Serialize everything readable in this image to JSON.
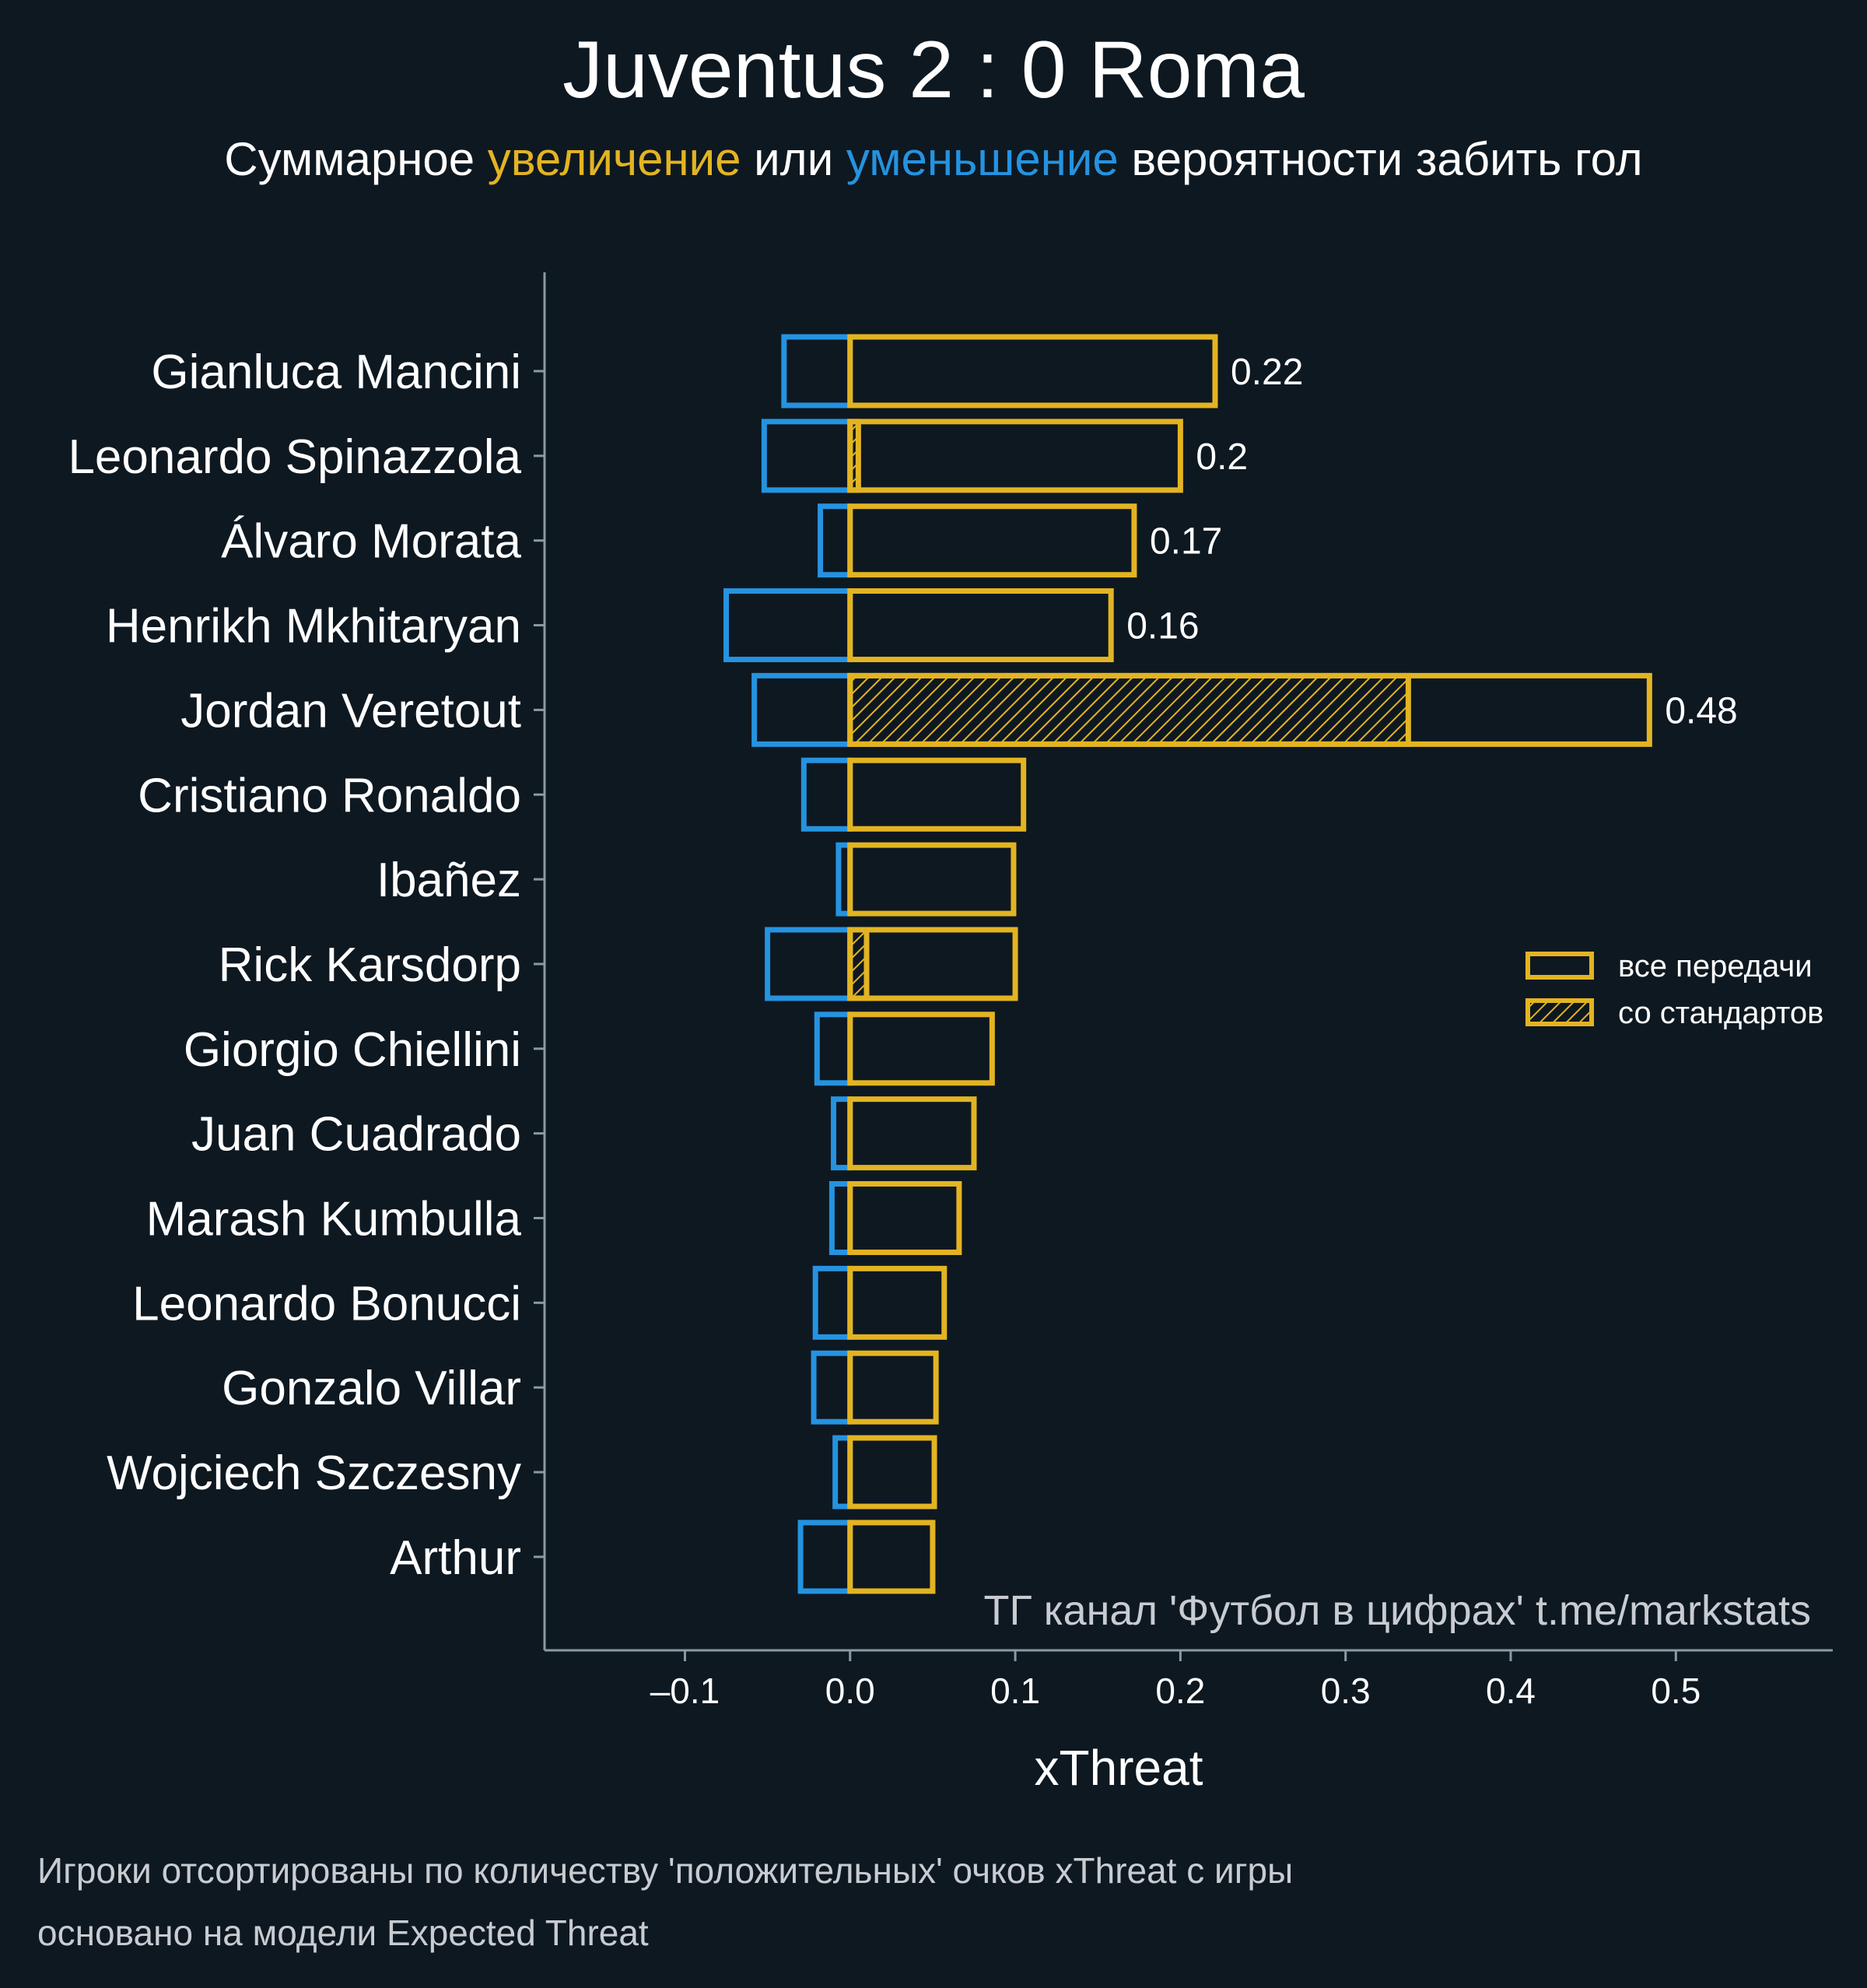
{
  "title": "Juventus 2 : 0 Roma",
  "subtitle": {
    "part1": "Суммарное ",
    "increase": "увеличение",
    "part2": " или ",
    "decrease": "уменьшение",
    "part3": " вероятности забить гол"
  },
  "colors": {
    "background": "#0e1821",
    "positive": "#e3b422",
    "negative": "#2593e0",
    "text": "#ffffff",
    "muted": "#c8ccd0",
    "axis": "#8a9aa2"
  },
  "legend": {
    "position": "right",
    "all_passes": "все передачи",
    "set_pieces": "со стандартов"
  },
  "watermark": "ТГ канал 'Футбол в цифрах'  t.me/markstats",
  "footnote": {
    "line1": "Игроки отсортированы по количеству 'положительных' очков xThreat с игры",
    "line2": "основано на модели Expected Threat"
  },
  "chart_data": {
    "type": "bar",
    "orientation": "horizontal",
    "xlabel": "xThreat",
    "xlim": [
      -0.185,
      0.595
    ],
    "xticks": [
      -0.1,
      0.0,
      0.1,
      0.2,
      0.3,
      0.4,
      0.5
    ],
    "xtick_labels": [
      "–0.1",
      "0.0",
      "0.1",
      "0.2",
      "0.3",
      "0.4",
      "0.5"
    ],
    "categories": [
      "Gianluca Mancini",
      "Leonardo Spinazzola",
      "Álvaro Morata",
      "Henrikh Mkhitaryan",
      "Jordan Veretout",
      "Cristiano Ronaldo",
      "Ibañez",
      "Rick Karsdorp",
      "Giorgio Chiellini",
      "Juan Cuadrado",
      "Marash Kumbulla",
      "Leonardo Bonucci",
      "Gonzalo Villar",
      "Wojciech Szczesny",
      "Arthur"
    ],
    "series": [
      {
        "name": "все передачи",
        "values": [
          0.221,
          0.2,
          0.172,
          0.158,
          0.484,
          0.105,
          0.099,
          0.1,
          0.086,
          0.075,
          0.066,
          0.057,
          0.052,
          0.051,
          0.05
        ]
      },
      {
        "name": "со стандартов",
        "values": [
          0,
          0.005,
          0,
          0,
          0.338,
          0,
          0,
          0.01,
          0,
          0,
          0,
          0,
          0,
          0,
          0
        ]
      },
      {
        "values": [
          -0.04,
          -0.052,
          -0.018,
          -0.075,
          -0.058,
          -0.028,
          -0.007,
          -0.05,
          -0.02,
          -0.01,
          -0.011,
          -0.021,
          -0.022,
          -0.009,
          -0.03
        ]
      }
    ],
    "value_labels": [
      "0.22",
      "0.2",
      "0.17",
      "0.16",
      "0.48",
      "",
      "",
      "",
      "",
      "",
      "",
      "",
      "",
      "",
      ""
    ],
    "grid": false
  }
}
